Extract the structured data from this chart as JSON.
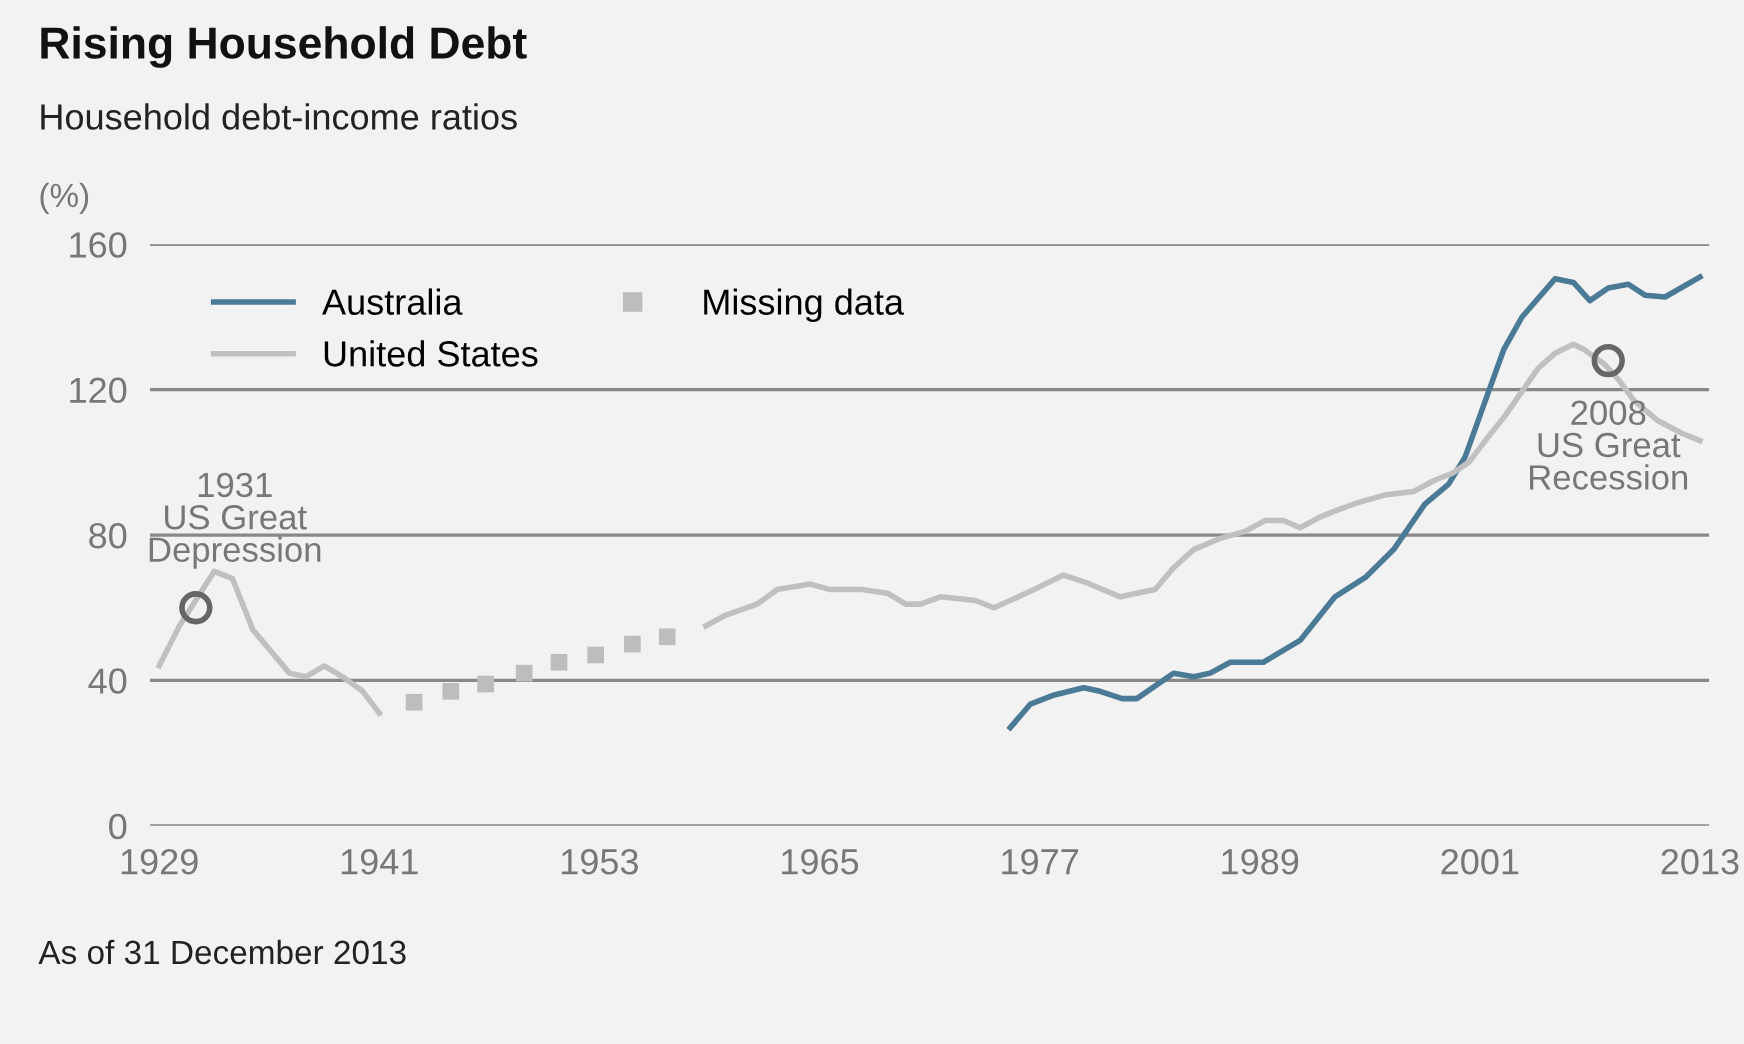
{
  "chart_data": {
    "type": "line",
    "title": "Rising Household Debt",
    "subtitle": "Household debt-income ratios",
    "ylabel": "(%)",
    "xlim": [
      1928.5,
      2013.5
    ],
    "xticks": [
      1929,
      1941,
      1953,
      1965,
      1977,
      1989,
      2001,
      2013
    ],
    "ylim": [
      0,
      160
    ],
    "yticks": [
      0,
      40,
      80,
      120,
      160
    ],
    "grid": "y",
    "legend": "top left",
    "series": [
      {
        "name": "Australia",
        "color": "#4a7a96",
        "x": [
          1975.4,
          1976.5,
          1977.8,
          1979.4,
          1980.3,
          1981.5,
          1982.3,
          1984.3,
          1985.4,
          1986.3,
          1987.4,
          1989.2,
          1991.2,
          1993.1,
          1994.8,
          1996.3,
          1998.0,
          1999.3,
          2000.2,
          2001.3,
          2002.3,
          2003.3,
          2005.1,
          2006.1,
          2007.0,
          2008.0,
          2009.1,
          2010.0,
          2011.1,
          2013.0
        ],
        "values": [
          27,
          33.5,
          36,
          38,
          37,
          35,
          35,
          42,
          41,
          42,
          45,
          45,
          51,
          63,
          68.5,
          76,
          88.5,
          94,
          101.5,
          117,
          131,
          140,
          150.5,
          149.5,
          144.5,
          148,
          149,
          146,
          145.5,
          151
        ]
      },
      {
        "name": "United States",
        "color": "#c0c0c0",
        "x": [
          1929.0,
          1930.1,
          1932.0,
          1933.0,
          1934.1,
          1936.1,
          1937.0,
          1938.0,
          1939.0,
          1940.1,
          1941.0,
          null,
          1958.8,
          1959.9,
          1961.6,
          1962.7,
          1964.5,
          1965.6,
          1967.3,
          1968.7,
          1969.7,
          1970.5,
          1971.6,
          1973.5,
          1974.5,
          1975.4,
          1976.7,
          1978.3,
          1979.5,
          1981.4,
          1982.3,
          1983.3,
          1984.3,
          1985.4,
          1986.8,
          1988.2,
          1989.3,
          1990.3,
          1991.2,
          1992.3,
          1993.3,
          1994.4,
          1995.8,
          1997.4,
          1998.5,
          1999.5,
          2000.4,
          2001.3,
          2002.4,
          2003.5,
          2004.2,
          2005.1,
          2006.1,
          2006.7,
          2007.8,
          2008.6,
          2009.4,
          2010.7,
          2012.0,
          2013.0
        ],
        "values": [
          44,
          55,
          70,
          68,
          54,
          42,
          41,
          44,
          41,
          37,
          31,
          null,
          55,
          58,
          61,
          65,
          66.5,
          65,
          65,
          64,
          61,
          61,
          63,
          62,
          60,
          62,
          65,
          69,
          67,
          63,
          64,
          65,
          71,
          76,
          79,
          81,
          84,
          84,
          82,
          85,
          87,
          89,
          91,
          92,
          95,
          97,
          100,
          106,
          113,
          121,
          126,
          130,
          132.5,
          131,
          127,
          122.5,
          117,
          111.5,
          108,
          106
        ]
      },
      {
        "name": "Missing data",
        "type": "scatter",
        "marker": "square",
        "color": "#bdbdbd",
        "x": [
          1942.9,
          1944.9,
          1946.8,
          1948.9,
          1950.8,
          1952.8,
          1954.8,
          1956.7
        ],
        "values": [
          34,
          37,
          39,
          42,
          45,
          47,
          50,
          52
        ]
      }
    ],
    "annotations": [
      {
        "text": "1931\nUS Great\nDepression",
        "x": 1931,
        "y": 60
      },
      {
        "text": "2008\nUS Great\nRecession",
        "x": 2008,
        "y": 128
      },
      "As of 31 December 2013"
    ]
  }
}
